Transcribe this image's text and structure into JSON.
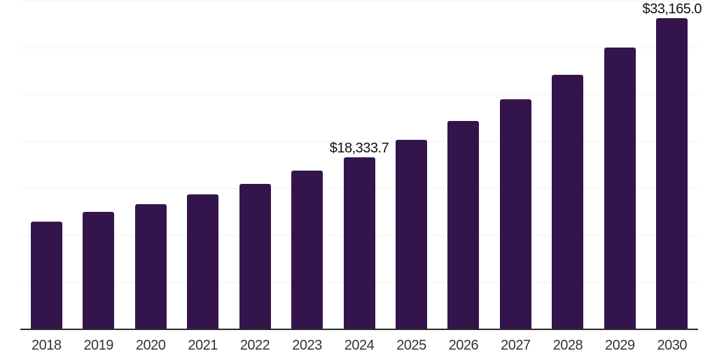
{
  "chart_data": {
    "type": "bar",
    "title": "",
    "xlabel": "",
    "ylabel": "",
    "categories": [
      "2018",
      "2019",
      "2020",
      "2021",
      "2022",
      "2023",
      "2024",
      "2025",
      "2026",
      "2027",
      "2028",
      "2029",
      "2030"
    ],
    "values": [
      11420,
      12465,
      13290,
      14335,
      15455,
      16870,
      18333.7,
      20160,
      22170,
      24490,
      27100,
      30040,
      33165.0
    ],
    "data_labels": [
      {
        "index": 6,
        "text": "$18,333.7"
      },
      {
        "index": 12,
        "text": "$33,165.0"
      }
    ],
    "ylim": [
      0,
      35100
    ],
    "gridline_interval": 5000,
    "grid": "horizontal-only",
    "legend_position": "none",
    "y_tick_labels_visible": false
  },
  "style": {
    "bar_color": "#33154c",
    "grid_color": "#f2f2f2",
    "axis_color": "#2b2b2b",
    "tick_label_color": "#333333",
    "value_label_color": "#111111",
    "background_color": "#ffffff"
  }
}
